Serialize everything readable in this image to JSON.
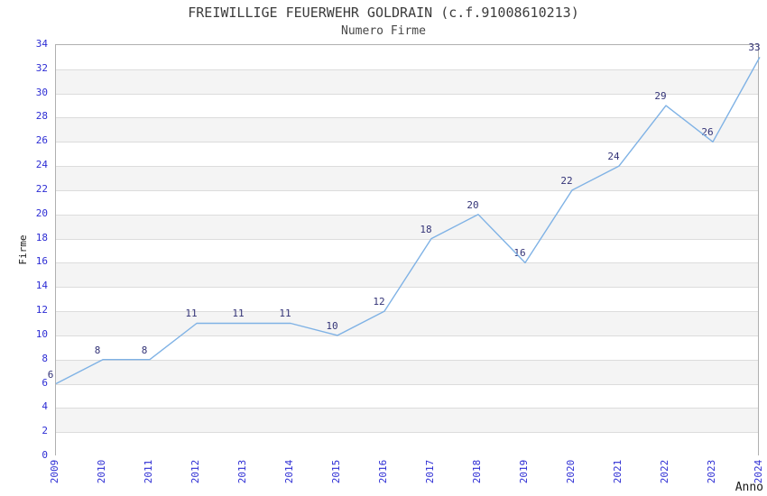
{
  "chart_data": {
    "type": "line",
    "title": "FREIWILLIGE FEUERWEHR GOLDRAIN (c.f.91008610213)",
    "subtitle": "Numero Firme",
    "xlabel": "Anno",
    "ylabel": "Firme",
    "x": [
      2009,
      2010,
      2011,
      2012,
      2013,
      2014,
      2015,
      2016,
      2017,
      2018,
      2019,
      2020,
      2021,
      2022,
      2023,
      2024
    ],
    "series": [
      {
        "name": "Numero Firme",
        "values": [
          6,
          8,
          8,
          11,
          11,
          11,
          10,
          12,
          18,
          20,
          16,
          22,
          24,
          29,
          26,
          33
        ]
      }
    ],
    "data_labels_shown": true,
    "xlim": [
      2009,
      2024
    ],
    "ylim": [
      0,
      34
    ],
    "ytick_step": 2,
    "xtick_labels": [
      "2009",
      "2010",
      "2011",
      "2012",
      "2013",
      "2014",
      "2015",
      "2016",
      "2017",
      "2018",
      "2019",
      "2020",
      "2021",
      "2022",
      "2023",
      "2024"
    ],
    "ytick_labels": [
      "0",
      "2",
      "4",
      "6",
      "8",
      "10",
      "12",
      "14",
      "16",
      "18",
      "20",
      "22",
      "24",
      "26",
      "28",
      "30",
      "32",
      "34"
    ],
    "grid": "horizontal",
    "legend": "none",
    "band_fill_alternating": true,
    "colors": {
      "line": "#7fb2e5",
      "tick_label": "#2d2dd4",
      "data_label": "#333377",
      "title_text": "#3c3c3c",
      "gridline": "#dcdcdc",
      "band": "#f4f4f4",
      "plot_border": "#b0b0b0",
      "background": "#ffffff"
    }
  }
}
